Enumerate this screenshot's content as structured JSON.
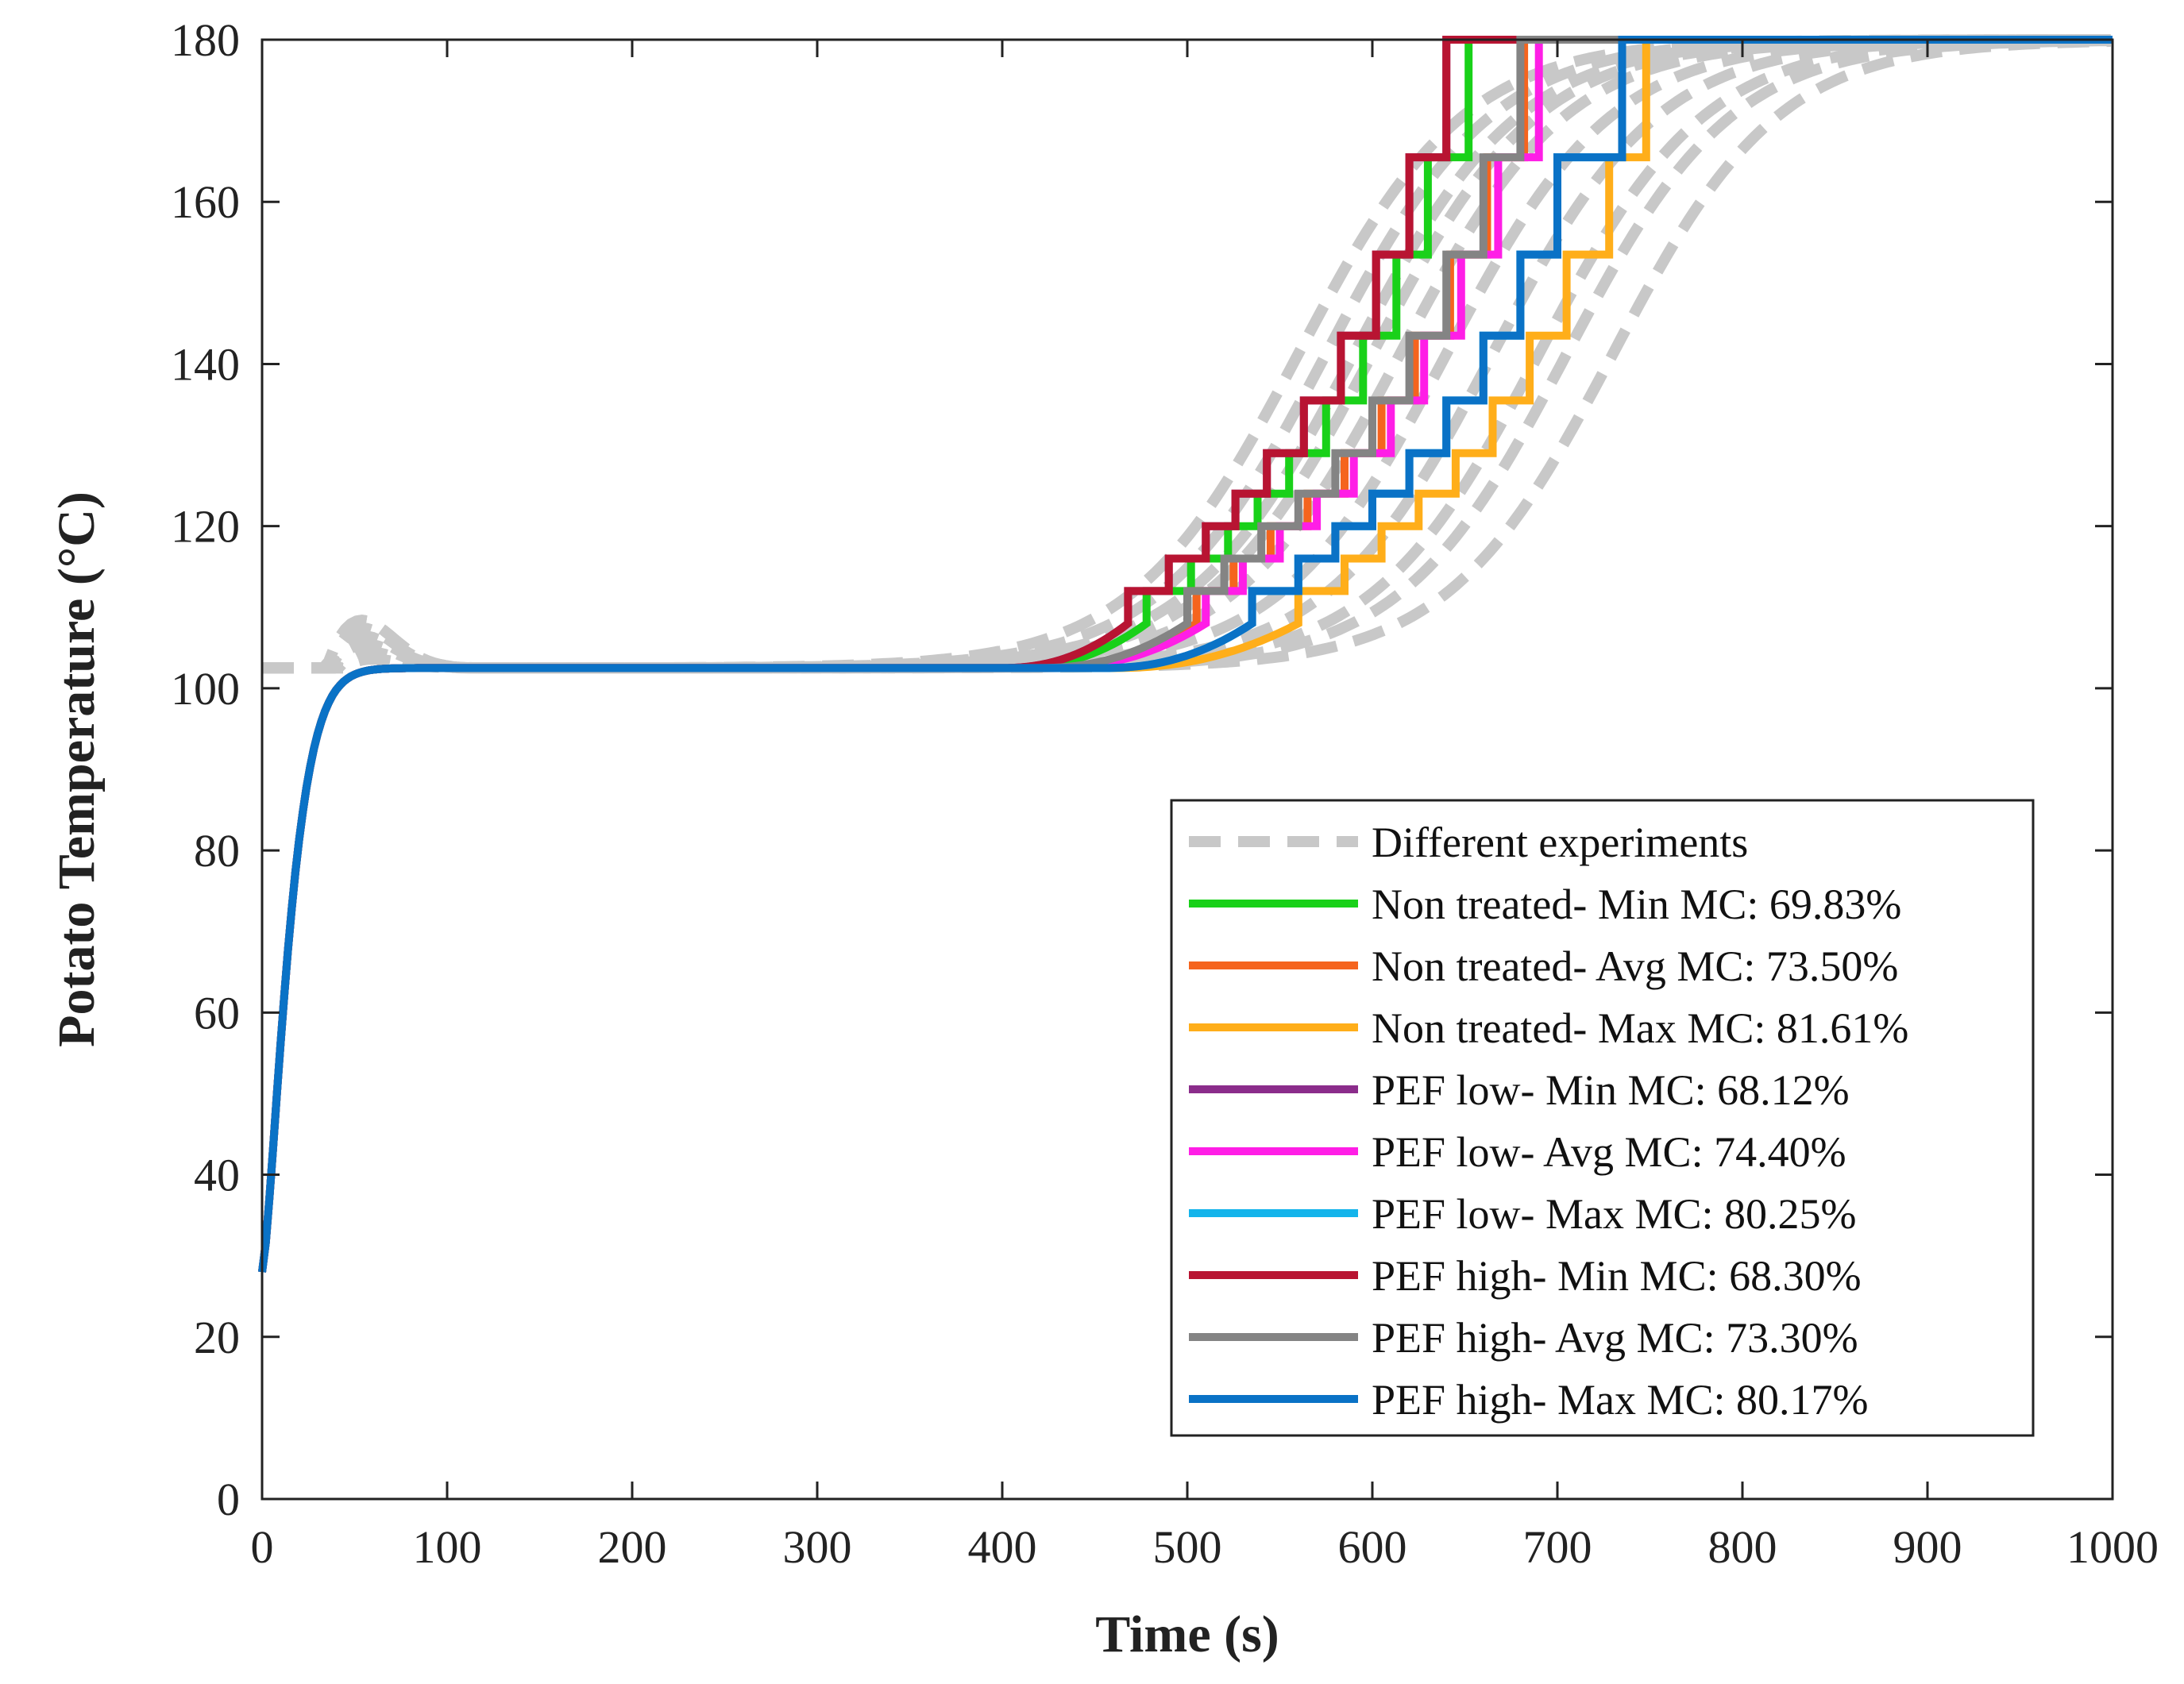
{
  "chart_data": {
    "type": "line",
    "title": "",
    "xlabel": "Time (s)",
    "ylabel": "Potato Temperature (°C)",
    "xlim": [
      0,
      1000
    ],
    "ylim": [
      0,
      180
    ],
    "xticks": [
      0,
      100,
      200,
      300,
      400,
      500,
      600,
      700,
      800,
      900,
      1000
    ],
    "yticks": [
      0,
      20,
      40,
      60,
      80,
      100,
      120,
      140,
      160,
      180
    ],
    "grid": false,
    "legend_position": "bottom-right",
    "experiments": {
      "name": "Different experiments",
      "color": "#c8c8c8",
      "style": "dashed",
      "midpoints": [
        560,
        575,
        590,
        600,
        615,
        640,
        665,
        690,
        705,
        730
      ],
      "bump_peaks": [
        108,
        106,
        109,
        107,
        105,
        108,
        104,
        107,
        106,
        109
      ]
    },
    "series": [
      {
        "name": "Non treated- Min MC: 69.83%",
        "color": "#19d119",
        "style": "solid",
        "rise_start": 405,
        "step_end_times": [
          478,
          502,
          522,
          538,
          555,
          575,
          595,
          613,
          630,
          652,
          710
        ]
      },
      {
        "name": "Non treated- Avg MC: 73.50%",
        "color": "#f5641e",
        "style": "solid",
        "rise_start": 420,
        "step_end_times": [
          505,
          525,
          545,
          565,
          585,
          605,
          623,
          642,
          662,
          682,
          742
        ]
      },
      {
        "name": "Non treated- Max MC: 81.61%",
        "color": "#ffae1a",
        "style": "solid",
        "rise_start": 460,
        "step_end_times": [
          560,
          585,
          605,
          625,
          645,
          665,
          685,
          705,
          728,
          748,
          808
        ]
      },
      {
        "name": "PEF low- Min MC: 68.12%",
        "color": "#8b2c8b",
        "style": "solid",
        "rise_start": 400,
        "step_end_times": [
          468,
          490,
          510,
          526,
          543,
          563,
          583,
          602,
          620,
          640,
          695
        ]
      },
      {
        "name": "PEF low- Avg MC: 74.40%",
        "color": "#ff1ee6",
        "style": "solid",
        "rise_start": 425,
        "step_end_times": [
          510,
          530,
          550,
          570,
          590,
          610,
          628,
          648,
          668,
          690,
          748
        ]
      },
      {
        "name": "PEF low- Max MC: 80.25%",
        "color": "#14b4eb",
        "style": "solid",
        "rise_start": 455,
        "step_end_times": [
          535,
          560,
          580,
          600,
          620,
          640,
          660,
          680,
          700,
          735,
          795
        ]
      },
      {
        "name": "PEF high- Min MC: 68.30%",
        "color": "#b81432",
        "style": "solid",
        "rise_start": 400,
        "step_end_times": [
          468,
          490,
          510,
          526,
          543,
          563,
          583,
          602,
          620,
          640,
          695
        ]
      },
      {
        "name": "PEF high- Avg MC: 73.30%",
        "color": "#848484",
        "style": "solid",
        "rise_start": 420,
        "step_end_times": [
          500,
          520,
          540,
          560,
          580,
          600,
          620,
          640,
          660,
          680,
          740
        ]
      },
      {
        "name": "PEF high- Max MC: 80.17%",
        "color": "#0a72c6",
        "style": "solid",
        "rise_start": 455,
        "step_end_times": [
          535,
          560,
          580,
          600,
          620,
          640,
          660,
          680,
          700,
          735,
          795
        ]
      }
    ],
    "common": {
      "initial_temp": 28,
      "plateau_temp": 102.5,
      "max_temp": 180,
      "step_levels": [
        108,
        112,
        116,
        120,
        124,
        129,
        135.5,
        143.5,
        153.5,
        165.5,
        180
      ]
    }
  }
}
